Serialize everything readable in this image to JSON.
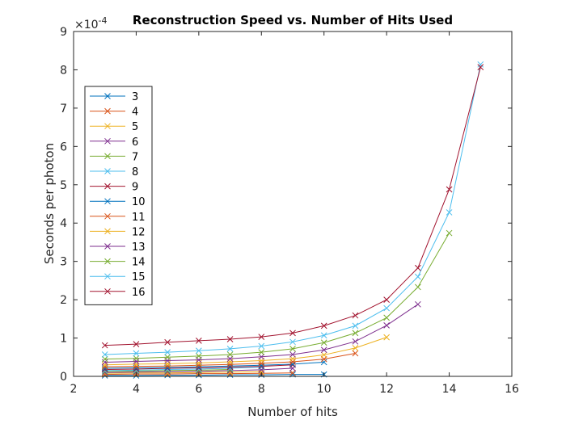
{
  "chart_data": {
    "type": "line",
    "title": "Reconstruction Speed vs. Number of Hits Used",
    "xlabel": "Number of hits",
    "ylabel": "Seconds per photon",
    "xlim": [
      2,
      16
    ],
    "ylim": [
      0,
      9
    ],
    "y_exponent_label": "×10",
    "y_exponent_power": "-4",
    "y_exponent_value": 0.0001,
    "x_ticks": [
      2,
      4,
      6,
      8,
      10,
      12,
      14,
      16
    ],
    "y_ticks": [
      0,
      1,
      2,
      3,
      4,
      5,
      6,
      7,
      8,
      9
    ],
    "grid": false,
    "legend_position": "left",
    "marker": "x",
    "series": [
      {
        "name": "3",
        "color": "#0072BD",
        "x": [
          3,
          4,
          5,
          6,
          7,
          8,
          9,
          10
        ],
        "y": [
          0.02,
          0.02,
          0.03,
          0.03,
          0.04,
          0.04,
          0.05,
          0.05
        ]
      },
      {
        "name": "4",
        "color": "#D95319",
        "x": [
          3,
          4,
          5,
          6,
          7,
          8,
          9
        ],
        "y": [
          0.05,
          0.06,
          0.06,
          0.07,
          0.07,
          0.08,
          0.09
        ]
      },
      {
        "name": "5",
        "color": "#EDB120",
        "x": [
          3,
          4,
          5,
          6,
          7,
          8
        ],
        "y": [
          0.08,
          0.09,
          0.09,
          0.1,
          0.11,
          0.12
        ]
      },
      {
        "name": "6",
        "color": "#7E2F8E",
        "x": [
          3,
          4,
          5,
          6,
          7,
          8,
          9
        ],
        "y": [
          0.1,
          0.11,
          0.12,
          0.13,
          0.15,
          0.17,
          0.21
        ]
      },
      {
        "name": "7",
        "color": "#77AC30",
        "x": [
          3,
          4,
          5,
          6,
          7
        ],
        "y": [
          0.13,
          0.14,
          0.15,
          0.16,
          0.18
        ]
      },
      {
        "name": "8",
        "color": "#4DBEEE",
        "x": [
          3,
          4,
          5,
          6,
          7,
          8
        ],
        "y": [
          0.15,
          0.16,
          0.18,
          0.19,
          0.21,
          0.24
        ]
      },
      {
        "name": "9",
        "color": "#A2142F",
        "x": [
          3,
          4,
          5,
          6,
          7,
          8,
          9
        ],
        "y": [
          0.18,
          0.19,
          0.21,
          0.22,
          0.24,
          0.26,
          0.3
        ]
      },
      {
        "name": "10",
        "color": "#0072BD",
        "x": [
          3,
          4,
          5,
          6,
          7,
          8,
          9,
          10
        ],
        "y": [
          0.21,
          0.22,
          0.23,
          0.25,
          0.27,
          0.29,
          0.32,
          0.37
        ]
      },
      {
        "name": "11",
        "color": "#D95319",
        "x": [
          3,
          4,
          5,
          6,
          7,
          8,
          9,
          10,
          11
        ],
        "y": [
          0.25,
          0.26,
          0.27,
          0.29,
          0.31,
          0.34,
          0.38,
          0.45,
          0.6
        ]
      },
      {
        "name": "12",
        "color": "#EDB120",
        "x": [
          3,
          4,
          5,
          6,
          7,
          8,
          9,
          10,
          11,
          12
        ],
        "y": [
          0.3,
          0.32,
          0.33,
          0.35,
          0.38,
          0.41,
          0.46,
          0.56,
          0.74,
          1.02
        ]
      },
      {
        "name": "13",
        "color": "#7E2F8E",
        "x": [
          3,
          4,
          5,
          6,
          7,
          8,
          9,
          10,
          11,
          12,
          13
        ],
        "y": [
          0.37,
          0.39,
          0.41,
          0.43,
          0.46,
          0.51,
          0.57,
          0.69,
          0.91,
          1.33,
          1.88
        ]
      },
      {
        "name": "14",
        "color": "#77AC30",
        "x": [
          3,
          4,
          5,
          6,
          7,
          8,
          9,
          10,
          11,
          12,
          13,
          14
        ],
        "y": [
          0.45,
          0.47,
          0.5,
          0.53,
          0.57,
          0.63,
          0.72,
          0.88,
          1.13,
          1.53,
          2.33,
          3.74
        ]
      },
      {
        "name": "15",
        "color": "#4DBEEE",
        "x": [
          3,
          4,
          5,
          6,
          7,
          8,
          9,
          10,
          11,
          12,
          13,
          14,
          15
        ],
        "y": [
          0.57,
          0.6,
          0.63,
          0.67,
          0.72,
          0.79,
          0.9,
          1.07,
          1.32,
          1.78,
          2.6,
          4.28,
          8.14
        ]
      },
      {
        "name": "16",
        "color": "#A2142F",
        "x": [
          3,
          4,
          5,
          6,
          7,
          8,
          9,
          10,
          11,
          12,
          13,
          14,
          15
        ],
        "y": [
          0.81,
          0.84,
          0.89,
          0.93,
          0.97,
          1.03,
          1.13,
          1.32,
          1.59,
          2.0,
          2.83,
          4.88,
          8.07
        ]
      }
    ]
  }
}
